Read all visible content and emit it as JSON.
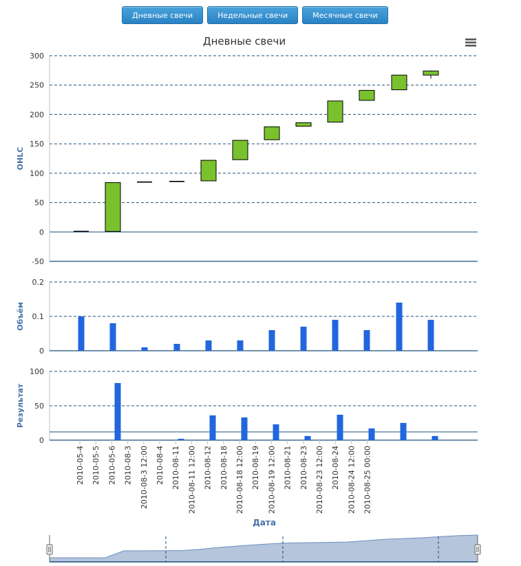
{
  "buttons": [
    {
      "label": "Дневные свечи"
    },
    {
      "label": "Недельные свечи"
    },
    {
      "label": "Месячные свечи"
    }
  ],
  "chart_data": {
    "type": "candlestick",
    "title": "Дневные свечи",
    "xlabel": "Дата",
    "x_categories": [
      "2010-05-4",
      "2010-05-5",
      "2010-05-6",
      "2010-08-3",
      "2010-08-3 12:00",
      "2010-08-4",
      "2010-08-11",
      "2010-08-11 12:00",
      "2010-08-12",
      "2010-08-18",
      "2010-08-18 12:00",
      "2010-08-19",
      "2010-08-19 12:00",
      "2010-08-21",
      "2010-08-23",
      "2010-08-23 12:00",
      "2010-08-24",
      "2010-08-24 12:00",
      "2010-08-25 00:00"
    ],
    "panes": {
      "ohlc": {
        "ylabel": "OHLC",
        "ylim": [
          -50,
          300
        ],
        "ticks": [
          -50,
          0,
          50,
          100,
          150,
          200,
          250,
          300
        ],
        "candles": [
          {
            "x": "2010-05-4",
            "open": 0,
            "high": 1,
            "low": 0,
            "close": 1
          },
          {
            "x": "2010-05-6",
            "open": 1,
            "high": 84,
            "low": 1,
            "close": 84
          },
          {
            "x": "2010-08-3 12:00",
            "open": 84,
            "high": 85,
            "low": 84,
            "close": 85
          },
          {
            "x": "2010-08-4",
            "open": 85,
            "high": 86,
            "low": 85,
            "close": 86
          },
          {
            "x": "2010-08-11",
            "open": 87,
            "high": 122,
            "low": 87,
            "close": 122
          },
          {
            "x": "2010-08-12",
            "open": 123,
            "high": 156,
            "low": 123,
            "close": 156
          },
          {
            "x": "2010-08-18",
            "open": 157,
            "high": 179,
            "low": 157,
            "close": 179
          },
          {
            "x": "2010-08-19",
            "open": 180,
            "high": 186,
            "low": 180,
            "close": 186
          },
          {
            "x": "2010-08-21",
            "open": 187,
            "high": 223,
            "low": 187,
            "close": 223
          },
          {
            "x": "2010-08-23",
            "open": 224,
            "high": 241,
            "low": 224,
            "close": 241
          },
          {
            "x": "2010-08-24",
            "open": 242,
            "high": 267,
            "low": 242,
            "close": 267
          },
          {
            "x": "2010-08-25 00:00",
            "open": 267,
            "high": 275,
            "low": 261,
            "close": 274
          }
        ]
      },
      "volume": {
        "ylabel": "Объём",
        "ylim": [
          0,
          0.2
        ],
        "ticks": [
          0,
          0.1,
          0.2
        ],
        "bars": [
          {
            "x": "2010-05-4",
            "value": 0.1
          },
          {
            "x": "2010-05-6",
            "value": 0.08
          },
          {
            "x": "2010-08-3 12:00",
            "value": 0.01
          },
          {
            "x": "2010-08-4",
            "value": 0.02
          },
          {
            "x": "2010-08-11",
            "value": 0.03
          },
          {
            "x": "2010-08-12",
            "value": 0.03
          },
          {
            "x": "2010-08-18",
            "value": 0.06
          },
          {
            "x": "2010-08-19",
            "value": 0.07
          },
          {
            "x": "2010-08-21",
            "value": 0.09
          },
          {
            "x": "2010-08-23",
            "value": 0.06
          },
          {
            "x": "2010-08-24",
            "value": 0.14
          },
          {
            "x": "2010-08-25 00:00",
            "value": 0.09
          }
        ]
      },
      "result": {
        "ylabel": "Результат",
        "ylim": [
          0,
          100
        ],
        "ticks": [
          0,
          50,
          100
        ],
        "reference_line": 12,
        "bars": [
          {
            "x": "2010-05-6",
            "value": 83
          },
          {
            "x": "2010-08-4",
            "value": 2
          },
          {
            "x": "2010-08-11",
            "value": 36
          },
          {
            "x": "2010-08-12",
            "value": 33
          },
          {
            "x": "2010-08-18",
            "value": 23
          },
          {
            "x": "2010-08-19",
            "value": 6
          },
          {
            "x": "2010-08-21",
            "value": 37
          },
          {
            "x": "2010-08-23",
            "value": 17
          },
          {
            "x": "2010-08-24",
            "value": 25
          },
          {
            "x": "2010-08-25 00:00",
            "value": 6
          }
        ]
      }
    },
    "navigator": {
      "series": [
        0,
        0,
        0,
        1,
        84,
        84,
        85,
        86,
        100,
        122,
        140,
        156,
        170,
        179,
        183,
        186,
        190,
        205,
        223,
        232,
        241,
        255,
        267,
        274
      ]
    },
    "colors": {
      "candle_up": "#7ac12e",
      "candle_border": "#000000",
      "bar": "#2266dd",
      "grid": "#1c4f7a",
      "axis_title": "#4572a7",
      "navigator_fill": "#b4c5dc",
      "navigator_line": "#6c8fbf"
    }
  }
}
